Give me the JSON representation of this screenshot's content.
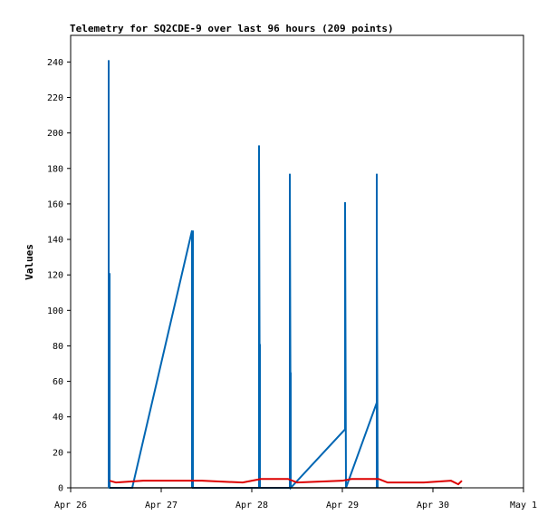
{
  "chart_data": {
    "type": "line",
    "title": "Telemetry for SQ2CDE-9 over last 96 hours (209 points)",
    "xlabel": "",
    "ylabel": "Values",
    "xlim": [
      "Apr 26",
      "May 1"
    ],
    "ylim": [
      0,
      255
    ],
    "x_ticks": [
      "Apr 26",
      "Apr 27",
      "Apr 28",
      "Apr 29",
      "Apr 30",
      "May 1"
    ],
    "y_ticks": [
      0,
      20,
      40,
      60,
      80,
      100,
      120,
      140,
      160,
      180,
      200,
      220,
      240
    ],
    "grid": false,
    "legend": "none",
    "series": [
      {
        "color": "#0066b3",
        "x_days": [
          0.42,
          0.42,
          0.42,
          0.43,
          0.43,
          0.43,
          0.68,
          1.34,
          1.34,
          1.35,
          1.35,
          2.08,
          2.08,
          2.09,
          2.09,
          2.09,
          2.42,
          2.42,
          2.43,
          2.43,
          2.43,
          3.03,
          3.03,
          3.04,
          3.04,
          3.38,
          3.38,
          3.38,
          3.38,
          3.39
        ],
        "values": [
          0,
          241,
          0,
          121,
          0,
          0,
          0,
          145,
          0,
          145,
          0,
          0,
          193,
          0,
          81,
          0,
          0,
          177,
          0,
          65,
          0,
          33,
          161,
          0,
          0,
          48,
          177,
          0,
          145,
          0
        ]
      },
      {
        "color": "#dd0000",
        "x_days": [
          0.43,
          0.5,
          0.8,
          1.3,
          1.45,
          1.9,
          2.1,
          2.4,
          2.5,
          3.0,
          3.1,
          3.4,
          3.5,
          3.9,
          4.2,
          4.28,
          4.32
        ],
        "values": [
          4,
          3,
          4,
          4,
          4,
          3,
          5,
          5,
          3,
          4,
          5,
          5,
          3,
          3,
          4,
          2,
          4
        ]
      },
      {
        "color": "#000000",
        "x_days": [
          0.43,
          4.32
        ],
        "values": [
          0,
          0
        ]
      }
    ]
  }
}
